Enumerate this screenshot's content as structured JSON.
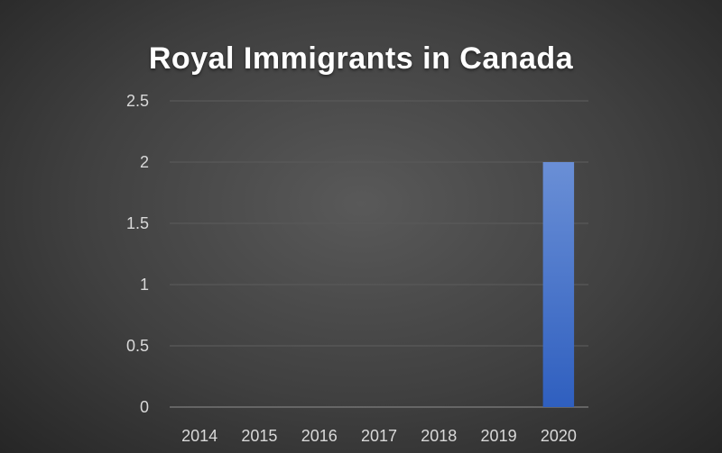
{
  "chart_data": {
    "type": "bar",
    "title": "Royal Immigrants in Canada",
    "xlabel": "",
    "ylabel": "",
    "categories": [
      "2014",
      "2015",
      "2016",
      "2017",
      "2018",
      "2019",
      "2020"
    ],
    "values": [
      0,
      0,
      0,
      0,
      0,
      0,
      2
    ],
    "ylim": [
      0,
      2.5
    ],
    "yticks": [
      "0",
      "0.5",
      "1",
      "1.5",
      "2",
      "2.5"
    ],
    "grid": true,
    "legend": "none",
    "bar_color": "#4472C4",
    "background_color": "#404040",
    "gridline_color": "#595959",
    "text_color": "#D9D9D9"
  }
}
